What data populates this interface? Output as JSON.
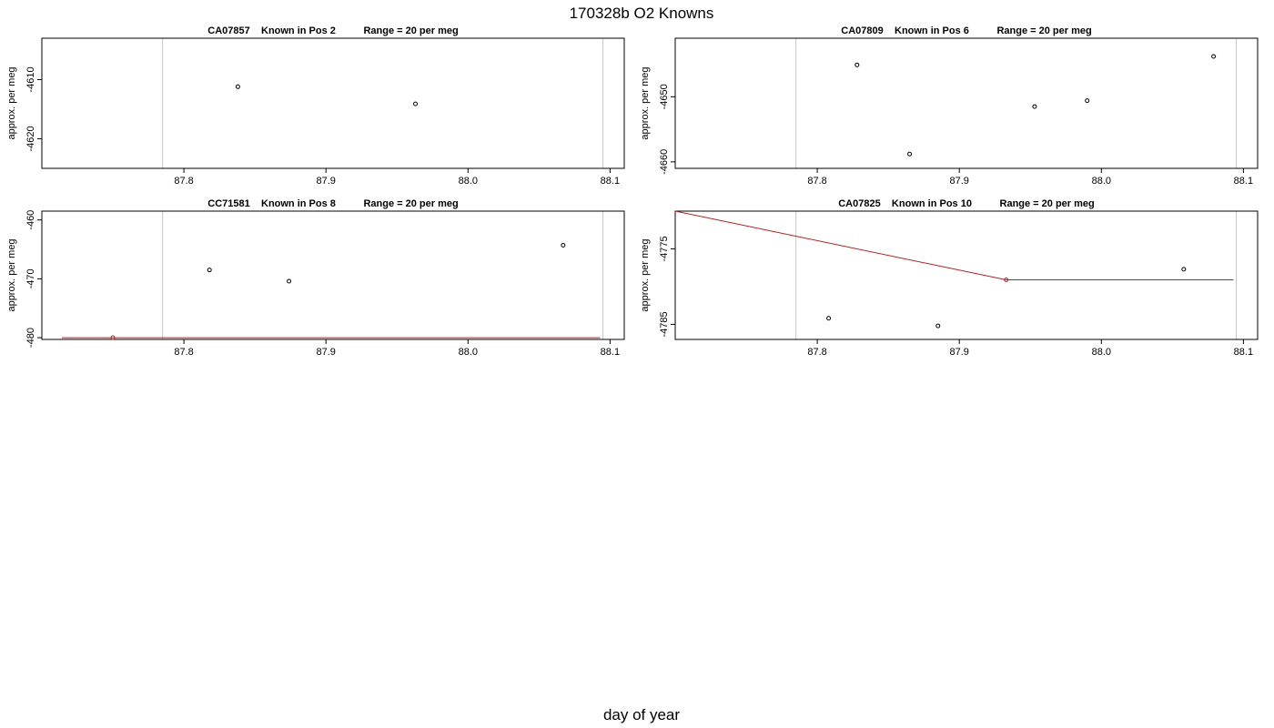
{
  "figure": {
    "title": "170328b   O2 Knowns",
    "xlabel": "day of year"
  },
  "colors": {
    "frame": "#000000",
    "vline": "#c8c8c8",
    "point": "#000000",
    "highlight_point": "#b22222",
    "trend_line": "#b22222",
    "baseline": "#000000"
  },
  "chart_data": [
    {
      "type": "scatter",
      "title": "CA07857    Known in Pos 2          Range = 20 per meg",
      "ylabel": "approx. per meg",
      "xlim": [
        87.7,
        88.11
      ],
      "ylim": [
        -4625,
        -4603
      ],
      "x_ticks": [
        87.8,
        87.9,
        88.0,
        88.1
      ],
      "x_tick_labels": [
        "87.8",
        "87.9",
        "88.0",
        "88.1"
      ],
      "y_ticks": [
        -4610,
        -4620
      ],
      "y_tick_labels": [
        "-4610",
        "-4620"
      ],
      "vlines": [
        87.785,
        88.095
      ],
      "points": [
        {
          "x": 87.838,
          "y": -4611.2
        },
        {
          "x": 87.963,
          "y": -4614.1
        }
      ],
      "trend_line": [],
      "highlight_points": []
    },
    {
      "type": "scatter",
      "title": "CA07809    Known in Pos 6          Range = 20 per meg",
      "ylabel": "approx. per meg",
      "xlim": [
        87.7,
        88.11
      ],
      "ylim": [
        -4661,
        -4641
      ],
      "x_ticks": [
        87.8,
        87.9,
        88.0,
        88.1
      ],
      "x_tick_labels": [
        "87.8",
        "87.9",
        "88.0",
        "88.1"
      ],
      "y_ticks": [
        -4650,
        -4660
      ],
      "y_tick_labels": [
        "-4650",
        "-4660"
      ],
      "vlines": [
        87.785,
        88.095
      ],
      "points": [
        {
          "x": 87.828,
          "y": -4645.1
        },
        {
          "x": 87.865,
          "y": -4658.8
        },
        {
          "x": 87.953,
          "y": -4651.5
        },
        {
          "x": 87.99,
          "y": -4650.6
        },
        {
          "x": 88.079,
          "y": -4643.8
        }
      ],
      "trend_line": [],
      "highlight_points": []
    },
    {
      "type": "scatter",
      "title": "CC71581    Known in Pos 8          Range = 20 per meg",
      "ylabel": "approx. per meg",
      "xlim": [
        87.7,
        88.11
      ],
      "ylim": [
        -480.3,
        -458.5
      ],
      "x_ticks": [
        87.8,
        87.9,
        88.0,
        88.1
      ],
      "x_tick_labels": [
        "87.8",
        "87.9",
        "88.0",
        "88.1"
      ],
      "y_ticks": [
        -460,
        -470,
        -480
      ],
      "y_tick_labels": [
        "-460",
        "-470",
        "-480"
      ],
      "vlines": [
        87.785,
        88.095
      ],
      "points": [
        {
          "x": 87.818,
          "y": -468.5
        },
        {
          "x": 87.874,
          "y": -470.4
        },
        {
          "x": 88.067,
          "y": -464.3
        }
      ],
      "trend_line": [
        {
          "x": 87.714,
          "y": -480.0
        },
        {
          "x": 88.093,
          "y": -480.0
        }
      ],
      "highlight_points": [
        {
          "x": 87.75,
          "y": -480.0
        }
      ]
    },
    {
      "type": "scatter",
      "title": "CA07825    Known in Pos 10          Range = 20 per meg",
      "ylabel": "approx. per meg",
      "xlim": [
        87.7,
        88.11
      ],
      "ylim": [
        -4787,
        -4770
      ],
      "x_ticks": [
        87.8,
        87.9,
        88.0,
        88.1
      ],
      "x_tick_labels": [
        "87.8",
        "87.9",
        "88.0",
        "88.1"
      ],
      "y_ticks": [
        -4775,
        -4785
      ],
      "y_tick_labels": [
        "-4775",
        "-4785"
      ],
      "vlines": [
        87.785,
        88.095
      ],
      "points": [
        {
          "x": 87.808,
          "y": -4784.2
        },
        {
          "x": 87.885,
          "y": -4785.2
        },
        {
          "x": 88.058,
          "y": -4777.7
        }
      ],
      "trend_line": [
        {
          "x": 87.7,
          "y": -4770.0
        },
        {
          "x": 87.933,
          "y": -4779.1
        },
        {
          "x": 88.093,
          "y": -4779.1
        }
      ],
      "highlight_points": [
        {
          "x": 87.933,
          "y": -4779.1
        }
      ]
    }
  ]
}
